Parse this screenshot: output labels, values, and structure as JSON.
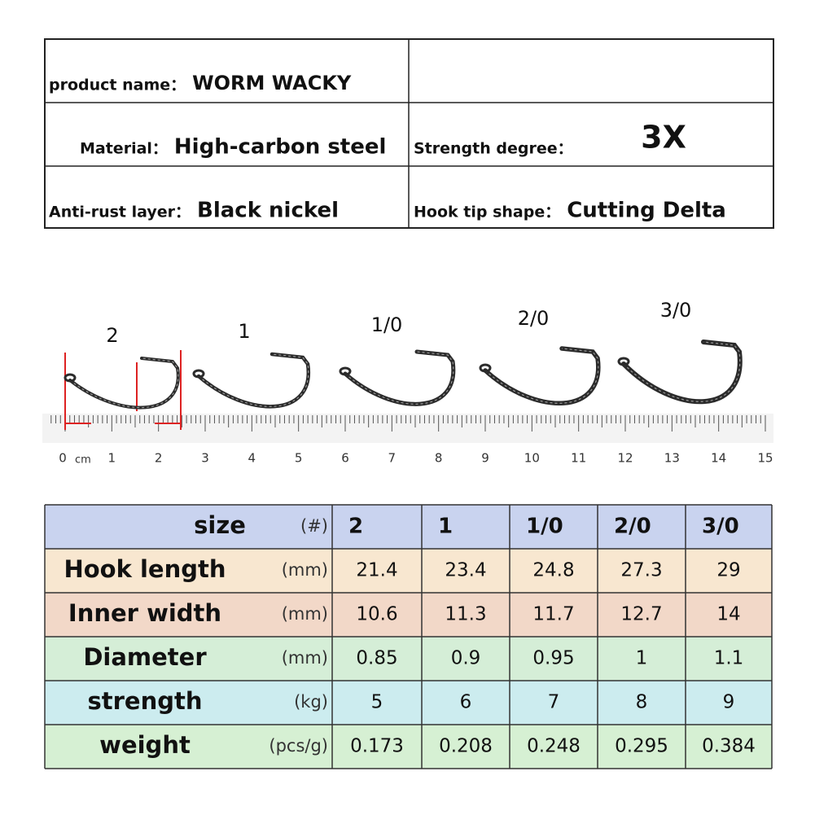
{
  "spec": {
    "rows": [
      {
        "left": {
          "label": "product name：",
          "value": "WORM WACKY"
        }
      },
      {
        "left": {
          "label": "Material：",
          "value": "High-carbon steel"
        },
        "right": {
          "label": "Strength degree：",
          "value": "3X"
        }
      },
      {
        "left": {
          "label": "Anti-rust layer：",
          "value": "Black nickel"
        },
        "right": {
          "label": "Hook tip shape：",
          "value": "Cutting Delta"
        }
      }
    ]
  },
  "hooks": {
    "sizes": [
      "2",
      "1",
      "1/0",
      "2/0",
      "3/0"
    ],
    "ruler_labels": [
      "0",
      "1",
      "2",
      "3",
      "4",
      "5",
      "6",
      "7",
      "8",
      "9",
      "10",
      "11",
      "12",
      "13",
      "14",
      "15"
    ],
    "ruler_unit": "cm"
  },
  "table": {
    "header": {
      "name": "size",
      "unit": "(#)",
      "values": [
        "2",
        "1",
        "1/0",
        "2/0",
        "3/0"
      ]
    },
    "rows": [
      {
        "name": "Hook length",
        "unit": "(mm)",
        "values": [
          "21.4",
          "23.4",
          "24.8",
          "27.3",
          "29"
        ]
      },
      {
        "name": "Inner width",
        "unit": "(mm)",
        "values": [
          "10.6",
          "11.3",
          "11.7",
          "12.7",
          "14"
        ]
      },
      {
        "name": "Diameter",
        "unit": "(mm)",
        "values": [
          "0.85",
          "0.9",
          "0.95",
          "1",
          "1.1"
        ]
      },
      {
        "name": "strength",
        "unit": "(kg)",
        "values": [
          "5",
          "6",
          "7",
          "8",
          "9"
        ]
      },
      {
        "name": "weight",
        "unit": "(pcs/g)",
        "values": [
          "0.173",
          "0.208",
          "0.248",
          "0.295",
          "0.384"
        ]
      }
    ]
  }
}
